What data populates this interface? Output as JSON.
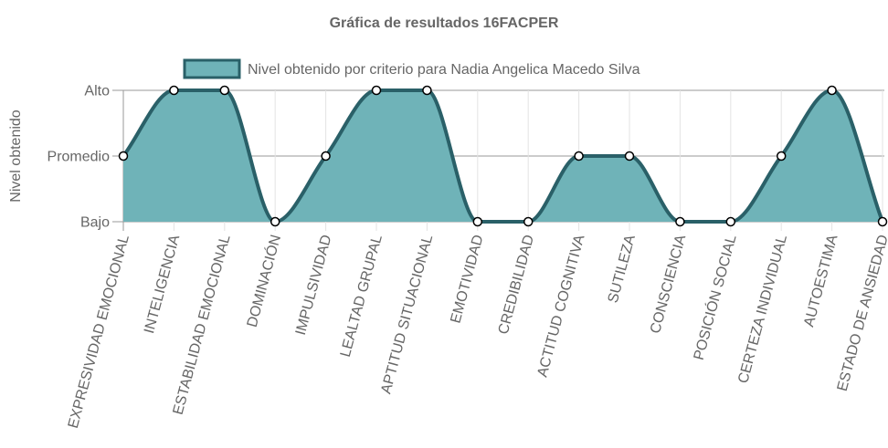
{
  "chart_data": {
    "type": "area",
    "title": "Gráfica de resultados 16FACPER",
    "ylabel": "Nivel obtenido",
    "xlabel": "",
    "y_levels": [
      "Bajo",
      "Promedio",
      "Alto"
    ],
    "ylim": [
      0,
      2
    ],
    "grid": true,
    "legend_position": "top",
    "categories": [
      "EXPRESIVIDAD EMOCIONAL",
      "INTELIGENCIA",
      "ESTABILIDAD EMOCIONAL",
      "DOMINACIÓN",
      "IMPULSIVIDAD",
      "LEALTAD GRUPAL",
      "APTITUD SITUACIONAL",
      "EMOTIVIDAD",
      "CREDIBILIDAD",
      "ACTITUD COGNITIVA",
      "SUTILEZA",
      "CONSCIENCIA",
      "POSICIÓN SOCIAL",
      "CERTEZA INDIVIDUAL",
      "AUTOESTIMA",
      "ESTADO DE ANSIEDAD"
    ],
    "series": [
      {
        "name": "Nivel obtenido por criterio para Nadia Angelica Macedo Silva",
        "values": [
          1,
          2,
          2,
          0,
          1,
          2,
          2,
          0,
          0,
          1,
          1,
          0,
          0,
          1,
          2,
          0
        ],
        "fill_color": "#6fb3b8",
        "line_color": "#2a6068"
      }
    ]
  }
}
